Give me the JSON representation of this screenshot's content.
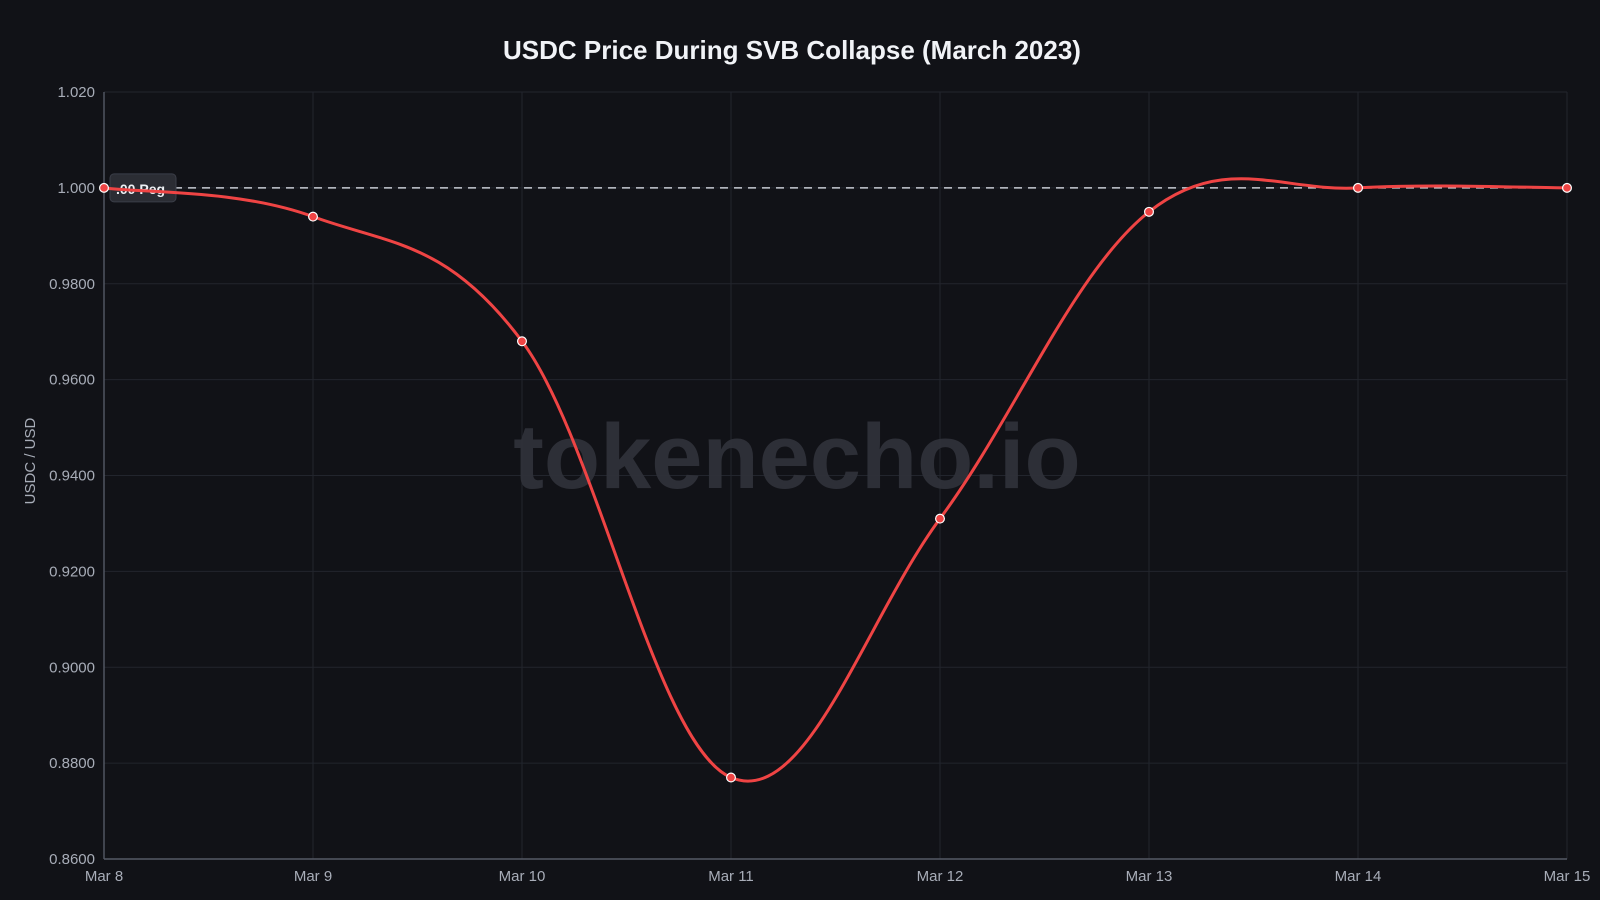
{
  "chart_data": {
    "type": "line",
    "title": "USDC Price During SVB Collapse (March 2023)",
    "xlabel": "",
    "ylabel": "USDC / USD",
    "x": [
      "Mar 8",
      "Mar 9",
      "Mar 10",
      "Mar 11",
      "Mar 12",
      "Mar 13",
      "Mar 14",
      "Mar 15"
    ],
    "series": [
      {
        "values": [
          1.0,
          0.994,
          0.968,
          0.877,
          0.931,
          0.995,
          1.0,
          1.0
        ],
        "color": "#ef4444"
      }
    ],
    "ylim": [
      0.86,
      1.02
    ],
    "yticks": [
      "0.8600",
      "0.8800",
      "0.9000",
      "0.9200",
      "0.9400",
      "0.9600",
      "0.9800",
      "1.000",
      "1.020"
    ],
    "ytick_values": [
      0.86,
      0.88,
      0.9,
      0.92,
      0.94,
      0.96,
      0.98,
      1.0,
      1.02
    ],
    "reference_line": {
      "y": 1.0,
      "label": ".00 Peg",
      "style": "dashed"
    },
    "watermark": "tokenecho.io",
    "grid": true
  }
}
